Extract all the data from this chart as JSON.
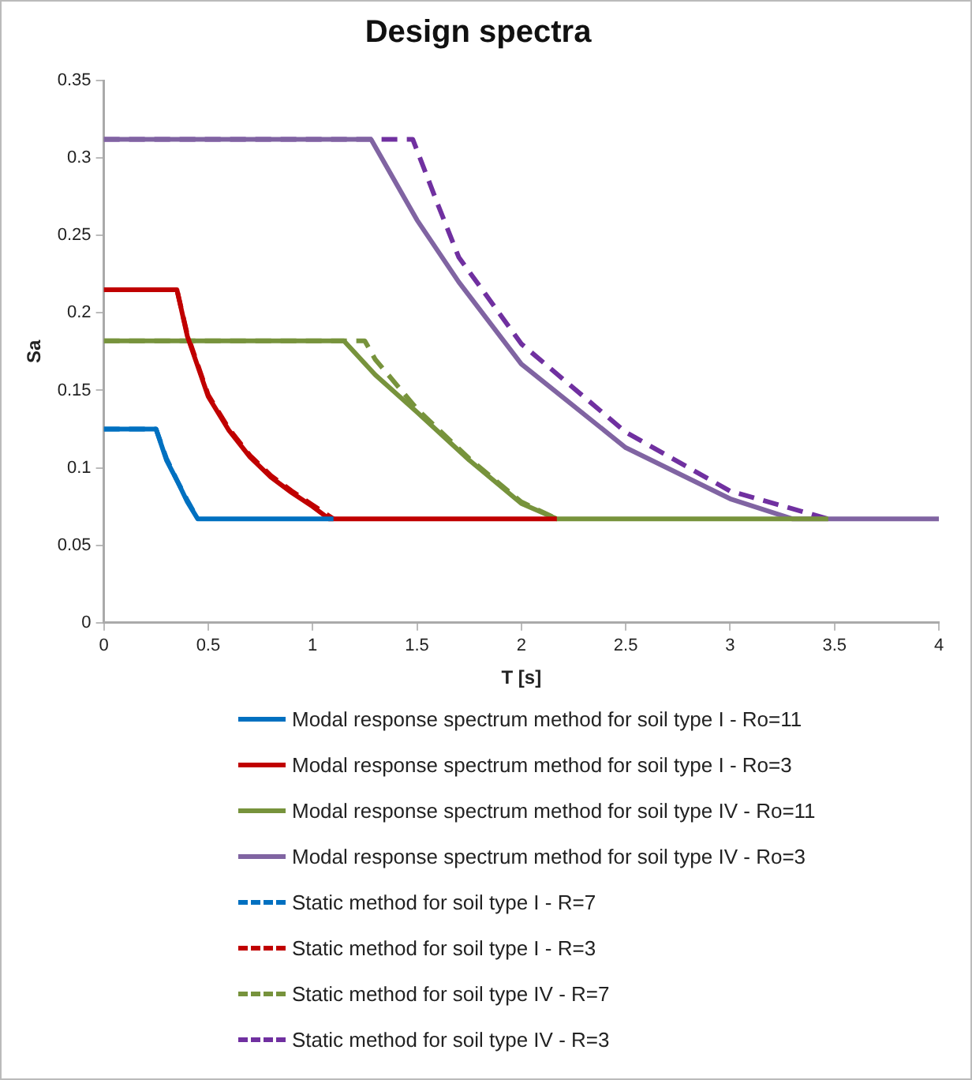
{
  "chart_data": {
    "type": "line",
    "title": "Design spectra",
    "xlabel": "T [s]",
    "ylabel": "Sa",
    "xlim": [
      0,
      4
    ],
    "xticks": [
      0,
      0.5,
      1,
      1.5,
      2,
      2.5,
      3,
      3.5,
      4
    ],
    "ylim": [
      0,
      0.35
    ],
    "yticks": [
      0,
      0.05,
      0.1,
      0.15,
      0.2,
      0.25,
      0.3,
      0.35
    ],
    "grid": false,
    "legend": "bottom",
    "marker": "none",
    "series": [
      {
        "name": "Modal response spectrum method for soil type I - Ro=11",
        "color": "#0070c0",
        "line_style": "solid",
        "x": [
          0,
          0.25,
          0.3,
          0.35,
          0.4,
          0.45,
          1.1
        ],
        "values": [
          0.125,
          0.125,
          0.105,
          0.092,
          0.078,
          0.067,
          0.067
        ]
      },
      {
        "name": "Modal response spectrum method for soil type I - Ro=3",
        "color": "#c00000",
        "line_style": "solid",
        "x": [
          0,
          0.35,
          0.4,
          0.5,
          0.6,
          0.7,
          0.8,
          0.9,
          1.0,
          1.08,
          2.17
        ],
        "values": [
          0.215,
          0.215,
          0.185,
          0.146,
          0.124,
          0.107,
          0.094,
          0.084,
          0.075,
          0.067,
          0.067
        ]
      },
      {
        "name": "Modal response spectrum method for soil type IV - Ro=11",
        "color": "#77933c",
        "line_style": "solid",
        "x": [
          0,
          1.15,
          1.3,
          1.5,
          1.75,
          2.0,
          2.17,
          3.47
        ],
        "values": [
          0.182,
          0.182,
          0.16,
          0.136,
          0.105,
          0.077,
          0.067,
          0.067
        ]
      },
      {
        "name": "Modal response spectrum method for soil type IV - Ro=3",
        "color": "#8064a2",
        "line_style": "solid",
        "x": [
          0,
          1.28,
          1.5,
          1.7,
          2.0,
          2.5,
          3.0,
          3.3,
          4
        ],
        "values": [
          0.312,
          0.312,
          0.26,
          0.22,
          0.167,
          0.113,
          0.08,
          0.067,
          0.067
        ]
      },
      {
        "name": "Static method for soil type I - R=7",
        "color": "#0070c0",
        "line_style": "dashed",
        "x": [
          0,
          0.25,
          0.3,
          0.35,
          0.4,
          0.45
        ],
        "values": [
          0.125,
          0.125,
          0.106,
          0.092,
          0.079,
          0.067
        ]
      },
      {
        "name": "Static method for soil type I - R=3",
        "color": "#c00000",
        "line_style": "dashed",
        "x": [
          0,
          0.35,
          0.4,
          0.5,
          0.6,
          0.7,
          0.8,
          0.9,
          1.0,
          1.1
        ],
        "values": [
          0.215,
          0.215,
          0.186,
          0.147,
          0.125,
          0.108,
          0.095,
          0.085,
          0.076,
          0.067
        ]
      },
      {
        "name": "Static method for soil type IV - R=7",
        "color": "#77933c",
        "line_style": "dashed",
        "x": [
          0,
          1.25,
          1.3,
          1.5,
          1.75,
          2.0,
          2.17
        ],
        "values": [
          0.182,
          0.182,
          0.17,
          0.138,
          0.106,
          0.078,
          0.067
        ]
      },
      {
        "name": "Static method for soil type IV - R=3",
        "color": "#7030a0",
        "line_style": "dashed",
        "x": [
          0,
          1.48,
          1.6,
          1.7,
          2.0,
          2.5,
          3.0,
          3.47
        ],
        "values": [
          0.312,
          0.312,
          0.27,
          0.236,
          0.18,
          0.123,
          0.085,
          0.067
        ]
      }
    ]
  }
}
